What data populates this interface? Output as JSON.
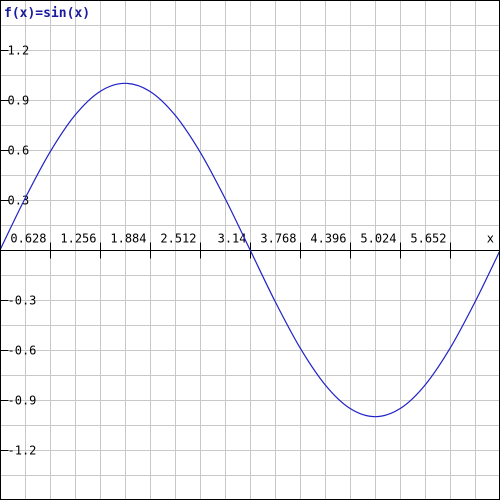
{
  "chart_data": {
    "type": "line",
    "title": "f(x)=sin(x)",
    "xlabel": "x",
    "ylabel": "",
    "xlim": [
      0,
      6.28
    ],
    "ylim": [
      -1.5,
      1.5
    ],
    "grid": true,
    "x_ticks": [
      0.628,
      1.256,
      1.884,
      2.512,
      3.14,
      3.768,
      4.396,
      5.024,
      5.652
    ],
    "x_tick_labels": [
      "0.628",
      "1.256",
      "1.884",
      "2.512",
      "3.14",
      "3.768",
      "4.396",
      "5.024",
      "5.652"
    ],
    "y_ticks": [
      1.2,
      0.9,
      0.6,
      0.3,
      -0.3,
      -0.6,
      -0.9,
      -1.2
    ],
    "y_tick_labels": [
      "1.2",
      "0.9",
      "0.6",
      "0.3",
      "-0.3",
      "-0.6",
      "-0.9",
      "-1.2"
    ],
    "series": [
      {
        "x": [
          0,
          0.3142,
          0.6283,
          0.9425,
          1.2566,
          1.5708,
          1.885,
          2.1991,
          2.5133,
          2.8274,
          3.1416,
          3.4558,
          3.7699,
          4.0841,
          4.3982,
          4.7124,
          5.0265,
          5.3407,
          5.6549,
          5.969,
          6.2832
        ],
        "y": [
          0,
          0.309,
          0.5878,
          0.809,
          0.9511,
          1,
          0.9511,
          0.809,
          0.5878,
          0.309,
          0,
          -0.309,
          -0.5878,
          -0.809,
          -0.9511,
          -1,
          -0.9511,
          -0.809,
          -0.5878,
          -0.309,
          0
        ],
        "color": "#2020c8"
      }
    ]
  }
}
